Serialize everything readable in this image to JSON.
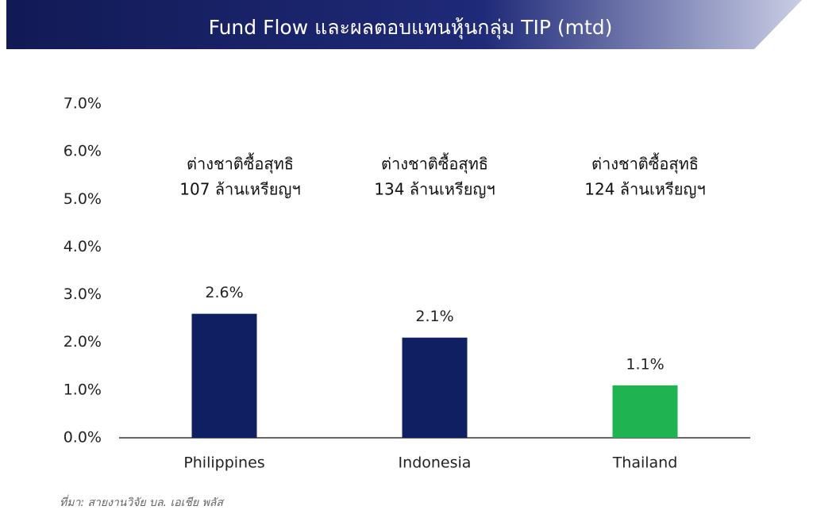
{
  "chart_data": {
    "type": "bar",
    "title": "Fund Flow และผลตอบแทนหุ้นกลุ่ม TIP (mtd)",
    "categories": [
      "Philippines",
      "Indonesia",
      "Thailand"
    ],
    "values": [
      2.6,
      2.1,
      1.1
    ],
    "value_labels": [
      "2.6%",
      "2.1%",
      "1.1%"
    ],
    "colors": [
      "#0e2062",
      "#0e2062",
      "#1fb451"
    ],
    "annotations": [
      [
        "ต่างชาติซื้อสุทธิ",
        "107 ล้านเหรียญฯ"
      ],
      [
        "ต่างชาติซื้อสุทธิ",
        "134 ล้านเหรียญฯ"
      ],
      [
        "ต่างชาติซื้อสุทธิ",
        "124 ล้านเหรียญฯ"
      ]
    ],
    "ylim": [
      0,
      7
    ],
    "yticks": [
      {
        "value": 0,
        "label": "0.0%"
      },
      {
        "value": 1,
        "label": "1.0%"
      },
      {
        "value": 2,
        "label": "2.0%"
      },
      {
        "value": 3,
        "label": "3.0%"
      },
      {
        "value": 4,
        "label": "4.0%"
      },
      {
        "value": 5,
        "label": "5.0%"
      },
      {
        "value": 6,
        "label": "6.0%"
      },
      {
        "value": 7,
        "label": "7.0%"
      }
    ],
    "grid": false,
    "source": "ที่มา: สายงานวิจัย บล. เอเชีย พลัส"
  }
}
